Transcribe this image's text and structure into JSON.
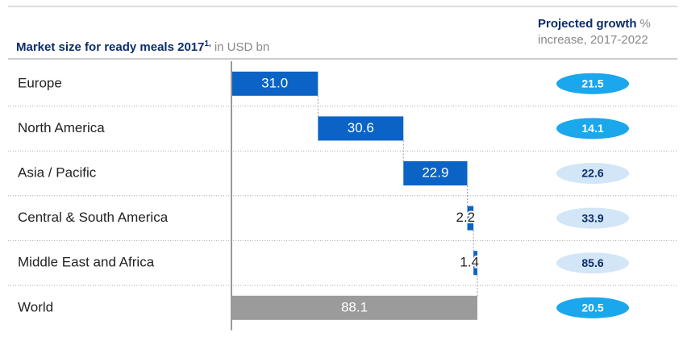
{
  "chart_data": {
    "type": "waterfall",
    "title": "Market size for ready meals 2017",
    "title_note": "1,",
    "title_unit": "in USD bn",
    "growth_title": "Projected growth",
    "growth_unit": "%",
    "growth_subtitle": "increase, 2017-2022",
    "categories": [
      "Europe",
      "North America",
      "Asia / Pacific",
      "Central & South America",
      "Middle East and Africa",
      "World"
    ],
    "values": [
      31.0,
      30.6,
      22.9,
      2.2,
      1.4,
      88.1
    ],
    "value_labels": [
      "31.0",
      "30.6",
      "22.9",
      "2.2",
      "1.4",
      "88.1"
    ],
    "is_total": [
      false,
      false,
      false,
      false,
      false,
      true
    ],
    "color": "#0b63c5",
    "total_color": "#9b9b9b",
    "growth": [
      21.5,
      14.1,
      22.6,
      33.9,
      85.6,
      20.5
    ],
    "growth_labels": [
      "21.5",
      "14.1",
      "22.6",
      "33.9",
      "85.6",
      "20.5"
    ],
    "growth_colors": [
      "#1aa7ec",
      "#1aa7ec",
      "#d3e6f8",
      "#d3e6f8",
      "#d3e6f8",
      "#1aa7ec"
    ],
    "growth_text_colors": [
      "#ffffff",
      "#ffffff",
      "#0b2d6b",
      "#0b2d6b",
      "#0b2d6b",
      "#ffffff"
    ]
  }
}
